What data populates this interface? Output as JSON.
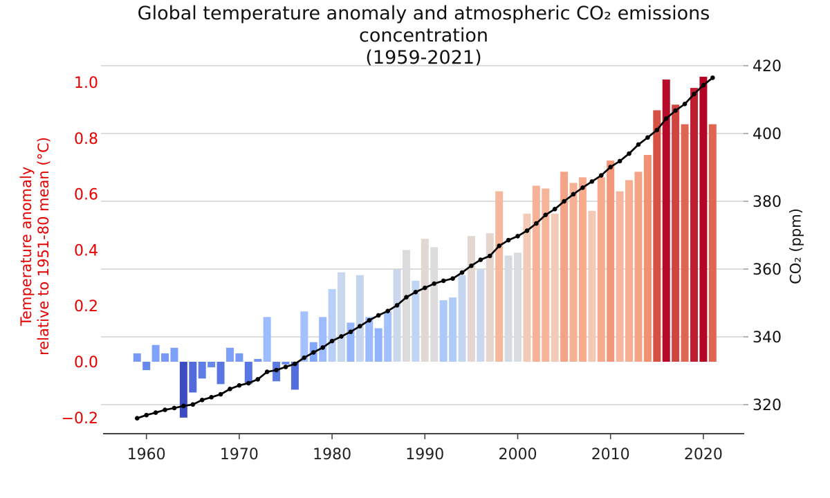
{
  "title": {
    "line1": "Global temperature anomaly and atmospheric CO₂ emissions concentration",
    "line2": "(1959-2021)"
  },
  "axes": {
    "left": {
      "label_line1": "Temperature anomaly",
      "label_line2": "relative to 1951-80 mean (°C)",
      "tick_values": [
        1.0,
        0.8,
        0.6,
        0.4,
        0.2,
        0.0,
        -0.2
      ],
      "tick_labels": [
        "1.0",
        "0.8",
        "0.6",
        "0.4",
        "0.2",
        "0.0",
        "−0.2"
      ],
      "color": "#e60000",
      "range": [
        -0.26,
        1.08
      ]
    },
    "right": {
      "label": "CO₂ (ppm)",
      "tick_values": [
        420,
        400,
        380,
        360,
        340,
        320
      ],
      "tick_labels": [
        "420",
        "400",
        "380",
        "360",
        "340",
        "320"
      ],
      "color": "#111111",
      "range": [
        311,
        422
      ]
    },
    "x": {
      "tick_values": [
        1960,
        1970,
        1980,
        1990,
        2000,
        2010,
        2020
      ],
      "tick_labels": [
        "1960",
        "1970",
        "1980",
        "1990",
        "2000",
        "2010",
        "2020"
      ],
      "color": "#222222"
    }
  },
  "style": {
    "background": "#ffffff",
    "grid_color": "#c8c8c8",
    "spine_color": "#444444",
    "bottom_tick_color": "#444444",
    "right_tick_color": "#999999",
    "line_color": "#000000",
    "marker_color": "#000000",
    "colormap_name": "coolwarm",
    "colormap_stops": [
      "#3b4cc0",
      "#5977e3",
      "#7b9ff9",
      "#9ebeff",
      "#c0d4f5",
      "#dddcdc",
      "#f2cbb7",
      "#f7ac8e",
      "#ee8468",
      "#d65244",
      "#b40426"
    ]
  },
  "chart_data": {
    "type": "combo-bar-line",
    "title": "Global temperature anomaly and atmospheric CO₂ emissions concentration (1959-2021)",
    "x": [
      1959,
      1960,
      1961,
      1962,
      1963,
      1964,
      1965,
      1966,
      1967,
      1968,
      1969,
      1970,
      1971,
      1972,
      1973,
      1974,
      1975,
      1976,
      1977,
      1978,
      1979,
      1980,
      1981,
      1982,
      1983,
      1984,
      1985,
      1986,
      1987,
      1988,
      1989,
      1990,
      1991,
      1992,
      1993,
      1994,
      1995,
      1996,
      1997,
      1998,
      1999,
      2000,
      2001,
      2002,
      2003,
      2004,
      2005,
      2006,
      2007,
      2008,
      2009,
      2010,
      2011,
      2012,
      2013,
      2014,
      2015,
      2016,
      2017,
      2018,
      2019,
      2020,
      2021
    ],
    "series": [
      {
        "name": "Temperature anomaly relative to 1951-80 mean (°C)",
        "type": "bar",
        "axis": "left",
        "color_by_value": true,
        "vmin": -0.2,
        "vmax": 1.02,
        "values": [
          0.03,
          -0.03,
          0.06,
          0.03,
          0.05,
          -0.2,
          -0.11,
          -0.06,
          -0.02,
          -0.08,
          0.05,
          0.03,
          -0.08,
          0.01,
          0.16,
          -0.07,
          -0.01,
          -0.1,
          0.18,
          0.07,
          0.16,
          0.26,
          0.32,
          0.14,
          0.31,
          0.16,
          0.12,
          0.18,
          0.33,
          0.4,
          0.29,
          0.44,
          0.41,
          0.22,
          0.23,
          0.31,
          0.45,
          0.33,
          0.46,
          0.61,
          0.38,
          0.39,
          0.53,
          0.63,
          0.62,
          0.53,
          0.68,
          0.64,
          0.66,
          0.54,
          0.66,
          0.72,
          0.61,
          0.65,
          0.68,
          0.74,
          0.9,
          1.01,
          0.92,
          0.85,
          0.98,
          1.02,
          0.85
        ]
      },
      {
        "name": "CO₂ (ppm)",
        "type": "line",
        "axis": "right",
        "marker": "circle",
        "values": [
          315.98,
          316.91,
          317.64,
          318.45,
          318.99,
          319.62,
          320.04,
          321.37,
          322.18,
          323.05,
          324.62,
          325.68,
          326.32,
          327.46,
          329.68,
          330.19,
          331.12,
          332.03,
          333.84,
          335.41,
          336.84,
          338.76,
          340.12,
          341.48,
          343.15,
          344.87,
          346.35,
          347.61,
          349.31,
          351.69,
          353.2,
          354.45,
          355.7,
          356.54,
          357.21,
          358.96,
          360.97,
          362.74,
          363.88,
          366.84,
          368.54,
          369.71,
          371.32,
          373.45,
          375.98,
          377.7,
          379.98,
          382.09,
          384.02,
          385.83,
          387.64,
          390.1,
          391.85,
          394.06,
          396.74,
          398.81,
          401.01,
          404.41,
          406.76,
          408.72,
          411.65,
          414.24,
          416.45
        ]
      }
    ],
    "grid": "horizontal, at right-axis ticks",
    "legend": "none"
  }
}
